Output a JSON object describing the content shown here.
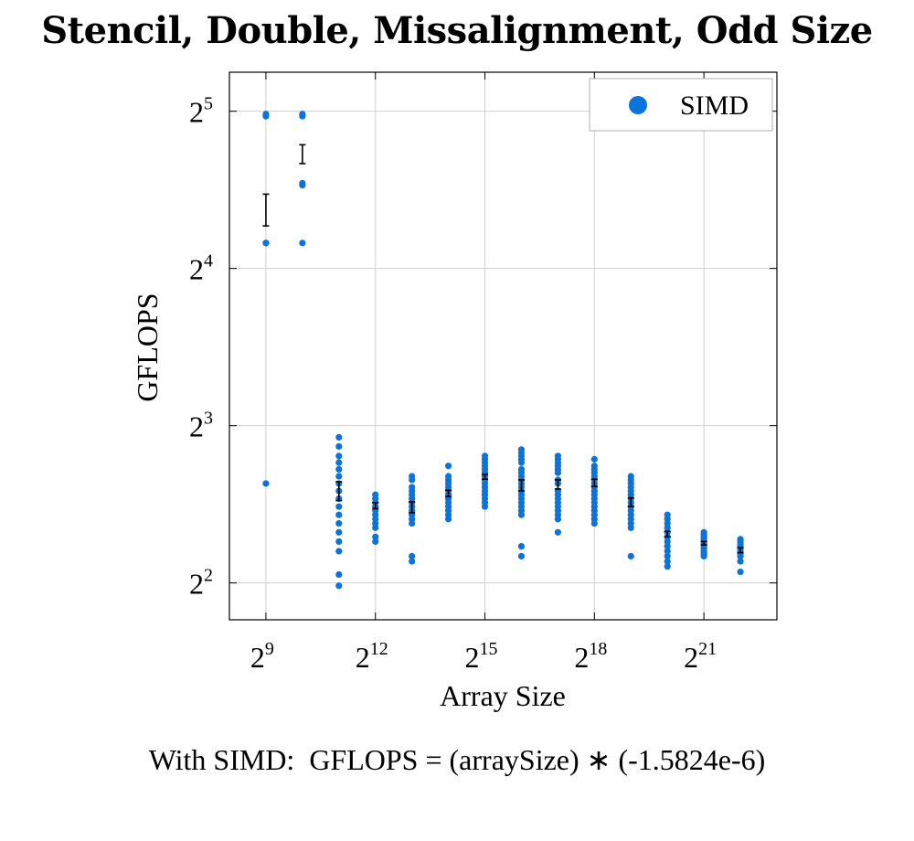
{
  "chart_data": {
    "type": "scatter",
    "title": "Stencil, Double, Missalignment, Odd Size",
    "xlabel": "Array Size",
    "ylabel": "GFLOPS",
    "x_scale": "log2",
    "y_scale": "log2",
    "xlim": [
      256,
      8388608
    ],
    "ylim": [
      3.4,
      38
    ],
    "x_ticks": [
      {
        "value": 512,
        "base": "2",
        "exp": "9"
      },
      {
        "value": 4096,
        "base": "2",
        "exp": "12"
      },
      {
        "value": 32768,
        "base": "2",
        "exp": "15"
      },
      {
        "value": 262144,
        "base": "2",
        "exp": "18"
      },
      {
        "value": 2097152,
        "base": "2",
        "exp": "21"
      }
    ],
    "y_ticks": [
      {
        "value": 4,
        "base": "2",
        "exp": "2"
      },
      {
        "value": 8,
        "base": "2",
        "exp": "3"
      },
      {
        "value": 16,
        "base": "2",
        "exp": "4"
      },
      {
        "value": 32,
        "base": "2",
        "exp": "5"
      }
    ],
    "grid": true,
    "legend": {
      "position": "top-right",
      "entries": [
        {
          "label": "SIMD",
          "color": "#0a74da"
        }
      ]
    },
    "series": [
      {
        "name": "SIMD",
        "color": "#0a74da",
        "points": [
          {
            "x": 512,
            "y": [
              31.6,
              31.3,
              17.9,
              17.9,
              6.2
            ]
          },
          {
            "x": 1024,
            "y": [
              31.6,
              31.3,
              23.3,
              23.1,
              17.9
            ]
          },
          {
            "x": 2048,
            "y": [
              7.6,
              7.3,
              7.0,
              6.8,
              6.6,
              6.4,
              6.2,
              6.0,
              5.8,
              5.6,
              5.4,
              5.2,
              5.0,
              4.8,
              4.6,
              4.15,
              3.95
            ]
          },
          {
            "x": 4096,
            "y": [
              5.9,
              5.8,
              5.7,
              5.6,
              5.5,
              5.4,
              5.3,
              5.2,
              5.1,
              4.9,
              4.8
            ]
          },
          {
            "x": 8192,
            "y": [
              6.4,
              6.3,
              6.1,
              6.0,
              5.9,
              5.8,
              5.7,
              5.6,
              5.5,
              5.4,
              5.3,
              5.2,
              4.5,
              4.4
            ]
          },
          {
            "x": 16384,
            "y": [
              6.7,
              6.4,
              6.3,
              6.2,
              6.1,
              6.0,
              5.9,
              5.8,
              5.7,
              5.6,
              5.5,
              5.4,
              5.3
            ]
          },
          {
            "x": 32768,
            "y": [
              7.0,
              6.9,
              6.8,
              6.7,
              6.6,
              6.5,
              6.4,
              6.3,
              6.2,
              6.1,
              6.0,
              5.9,
              5.8,
              5.7,
              5.6
            ]
          },
          {
            "x": 65536,
            "y": [
              7.2,
              7.1,
              7.0,
              6.9,
              6.8,
              6.6,
              6.5,
              6.4,
              6.3,
              6.2,
              6.1,
              6.0,
              5.9,
              5.8,
              5.7,
              5.6,
              5.5,
              5.4,
              4.7,
              4.5
            ]
          },
          {
            "x": 131072,
            "y": [
              7.0,
              6.9,
              6.8,
              6.7,
              6.6,
              6.5,
              6.3,
              6.2,
              6.0,
              5.9,
              5.8,
              5.7,
              5.6,
              5.5,
              5.4,
              5.3,
              5.0
            ]
          },
          {
            "x": 262144,
            "y": [
              6.9,
              6.7,
              6.6,
              6.5,
              6.4,
              6.3,
              6.2,
              6.1,
              6.0,
              5.9,
              5.8,
              5.7,
              5.6,
              5.5,
              5.4,
              5.3,
              5.2
            ]
          },
          {
            "x": 524288,
            "y": [
              6.4,
              6.3,
              6.2,
              6.1,
              6.0,
              5.9,
              5.8,
              5.7,
              5.6,
              5.5,
              5.4,
              5.3,
              5.2,
              5.1,
              4.5
            ]
          },
          {
            "x": 1048576,
            "y": [
              5.4,
              5.3,
              5.2,
              5.1,
              5.0,
              4.9,
              4.8,
              4.7,
              4.6,
              4.5,
              4.4,
              4.3
            ]
          },
          {
            "x": 2097152,
            "y": [
              5.0,
              4.95,
              4.9,
              4.85,
              4.8,
              4.75,
              4.7,
              4.65,
              4.6,
              4.55,
              4.5
            ]
          },
          {
            "x": 4194304,
            "y": [
              4.85,
              4.8,
              4.75,
              4.7,
              4.65,
              4.6,
              4.55,
              4.5,
              4.4,
              4.2
            ]
          }
        ]
      }
    ],
    "error_bars": [
      {
        "x": 512,
        "low": 19.3,
        "high": 22.2
      },
      {
        "x": 1024,
        "low": 25.4,
        "high": 27.6
      },
      {
        "x": 2048,
        "low": 5.75,
        "high": 6.25
      },
      {
        "x": 4096,
        "low": 5.55,
        "high": 5.7
      },
      {
        "x": 8192,
        "low": 5.45,
        "high": 5.72
      },
      {
        "x": 16384,
        "low": 5.85,
        "high": 6.02
      },
      {
        "x": 32768,
        "low": 6.32,
        "high": 6.45
      },
      {
        "x": 65536,
        "low": 6.0,
        "high": 6.3
      },
      {
        "x": 131072,
        "low": 6.05,
        "high": 6.3
      },
      {
        "x": 262144,
        "low": 6.12,
        "high": 6.32
      },
      {
        "x": 524288,
        "low": 5.6,
        "high": 5.82
      },
      {
        "x": 1048576,
        "low": 4.9,
        "high": 5.02
      },
      {
        "x": 2097152,
        "low": 4.73,
        "high": 4.8
      },
      {
        "x": 4194304,
        "low": 4.57,
        "high": 4.67
      }
    ]
  },
  "footnote": "With SIMD:  GFLOPS = (arraySize) ∗ (-1.5824e-6)"
}
